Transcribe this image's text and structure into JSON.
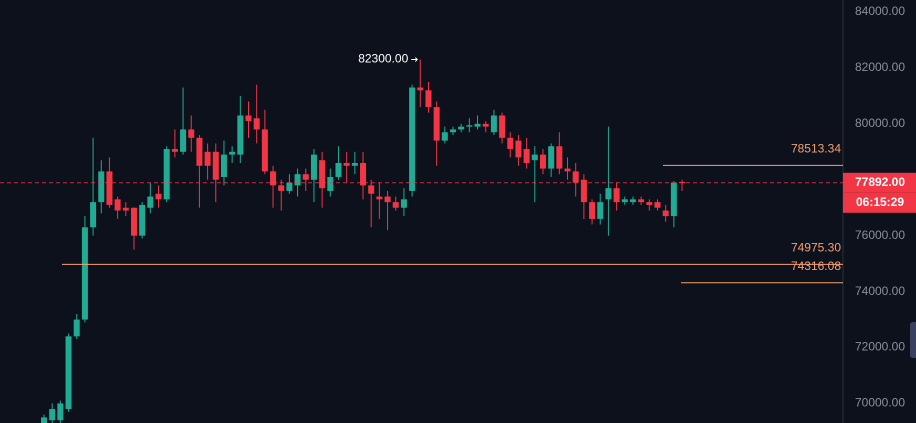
{
  "chart_data": {
    "type": "candlestick",
    "open": [
      69300,
      69400,
      69400,
      69800,
      72400,
      73000,
      76300,
      77200,
      78300,
      77300,
      77000,
      77000,
      76000,
      77000,
      77500,
      77300,
      79100,
      79000,
      79800,
      79500,
      79000,
      79000,
      78100,
      78900,
      78900,
      80300,
      80200,
      79800,
      78300,
      77800,
      77600,
      77800,
      78200,
      78000,
      78700,
      77600,
      78100,
      78600,
      78500,
      78600,
      77800,
      77400,
      77400,
      77200,
      77000,
      77600,
      81300,
      81200,
      80600,
      79400,
      79700,
      79800,
      79900,
      79900,
      80000,
      79700,
      80300,
      79500,
      79400,
      79100,
      78700,
      78900,
      78400,
      79200,
      78400,
      78300,
      78000,
      77200,
      76600,
      77300,
      77700,
      77200,
      77200,
      77300,
      77200,
      77200,
      76900,
      76700,
      77920
    ],
    "high": [
      69600,
      70000,
      70100,
      72500,
      73200,
      76700,
      79500,
      78700,
      78800,
      77400,
      77200,
      77000,
      77200,
      77900,
      77800,
      79200,
      79800,
      81300,
      80300,
      79600,
      79300,
      79300,
      79400,
      79200,
      81000,
      80800,
      81400,
      80500,
      78500,
      78000,
      78200,
      78400,
      78400,
      79100,
      79000,
      78400,
      79200,
      79000,
      79000,
      79000,
      78000,
      77900,
      77600,
      77400,
      77700,
      81400,
      82300,
      81500,
      80800,
      79900,
      79900,
      80000,
      80200,
      80300,
      80100,
      80500,
      80400,
      79700,
      79600,
      79500,
      79200,
      79100,
      79300,
      79700,
      78800,
      78600,
      78200,
      77300,
      77500,
      79900,
      77900,
      77400,
      77400,
      77400,
      77300,
      77300,
      77100,
      77950,
      78000
    ],
    "low": [
      69300,
      69300,
      69300,
      69700,
      72300,
      72900,
      76000,
      76800,
      77000,
      76600,
      76700,
      75500,
      75900,
      76800,
      77000,
      77200,
      78800,
      78900,
      79000,
      77000,
      78000,
      77200,
      77800,
      78600,
      78600,
      79500,
      79300,
      78200,
      77000,
      76900,
      77500,
      77400,
      77600,
      77200,
      77000,
      77400,
      78000,
      77900,
      78200,
      77300,
      76300,
      76600,
      76200,
      76900,
      76700,
      77400,
      80600,
      80400,
      78500,
      79300,
      79600,
      79700,
      79700,
      79800,
      79700,
      79600,
      79300,
      78800,
      78500,
      78400,
      77200,
      78200,
      78100,
      78200,
      78000,
      77400,
      76600,
      76400,
      76400,
      76000,
      76900,
      77100,
      77100,
      77100,
      76900,
      76900,
      76500,
      76300,
      77600
    ],
    "close": [
      69500,
      69800,
      70000,
      72400,
      73000,
      76300,
      77200,
      78300,
      77100,
      76900,
      76900,
      76000,
      77100,
      77400,
      77300,
      79100,
      79000,
      79800,
      79500,
      78500,
      78500,
      78000,
      78900,
      79000,
      80300,
      80100,
      79800,
      78300,
      77800,
      77600,
      77900,
      78200,
      78000,
      78900,
      77700,
      78100,
      78600,
      78500,
      78600,
      77800,
      77500,
      77300,
      77200,
      77000,
      77300,
      81300,
      81200,
      80600,
      79400,
      79700,
      79800,
      79900,
      79950,
      80000,
      79900,
      80300,
      79500,
      79100,
      78800,
      78600,
      78900,
      78400,
      79200,
      78400,
      78300,
      77900,
      77200,
      76600,
      77200,
      77700,
      77200,
      77300,
      77300,
      77200,
      77100,
      77000,
      76700,
      77900,
      77892
    ],
    "up_color": "#22ab94",
    "down_color": "#f23645",
    "ylim": [
      69300,
      84430
    ],
    "yticks": [
      {
        "value": 70000,
        "label": "70000.00"
      },
      {
        "value": 72000,
        "label": "72000.00"
      },
      {
        "value": 74000,
        "label": "74000.00"
      },
      {
        "value": 76000,
        "label": "76000.00"
      },
      {
        "value": 78000,
        "label": "78000.00"
      },
      {
        "value": 80000,
        "label": "80000.00"
      },
      {
        "value": 82000,
        "label": "82000.00"
      },
      {
        "value": 84000,
        "label": "84000.00"
      }
    ],
    "levels": [
      78513.34,
      {
        "value": 74975.3,
        "label": "74975.30"
      },
      74316.08
    ],
    "level_color": "#f7a072",
    "high_marker": {
      "value": 82300,
      "label": "82300.00"
    },
    "last_price": {
      "value": 77892,
      "label": "77892.00"
    },
    "countdown": "06:15:29"
  }
}
